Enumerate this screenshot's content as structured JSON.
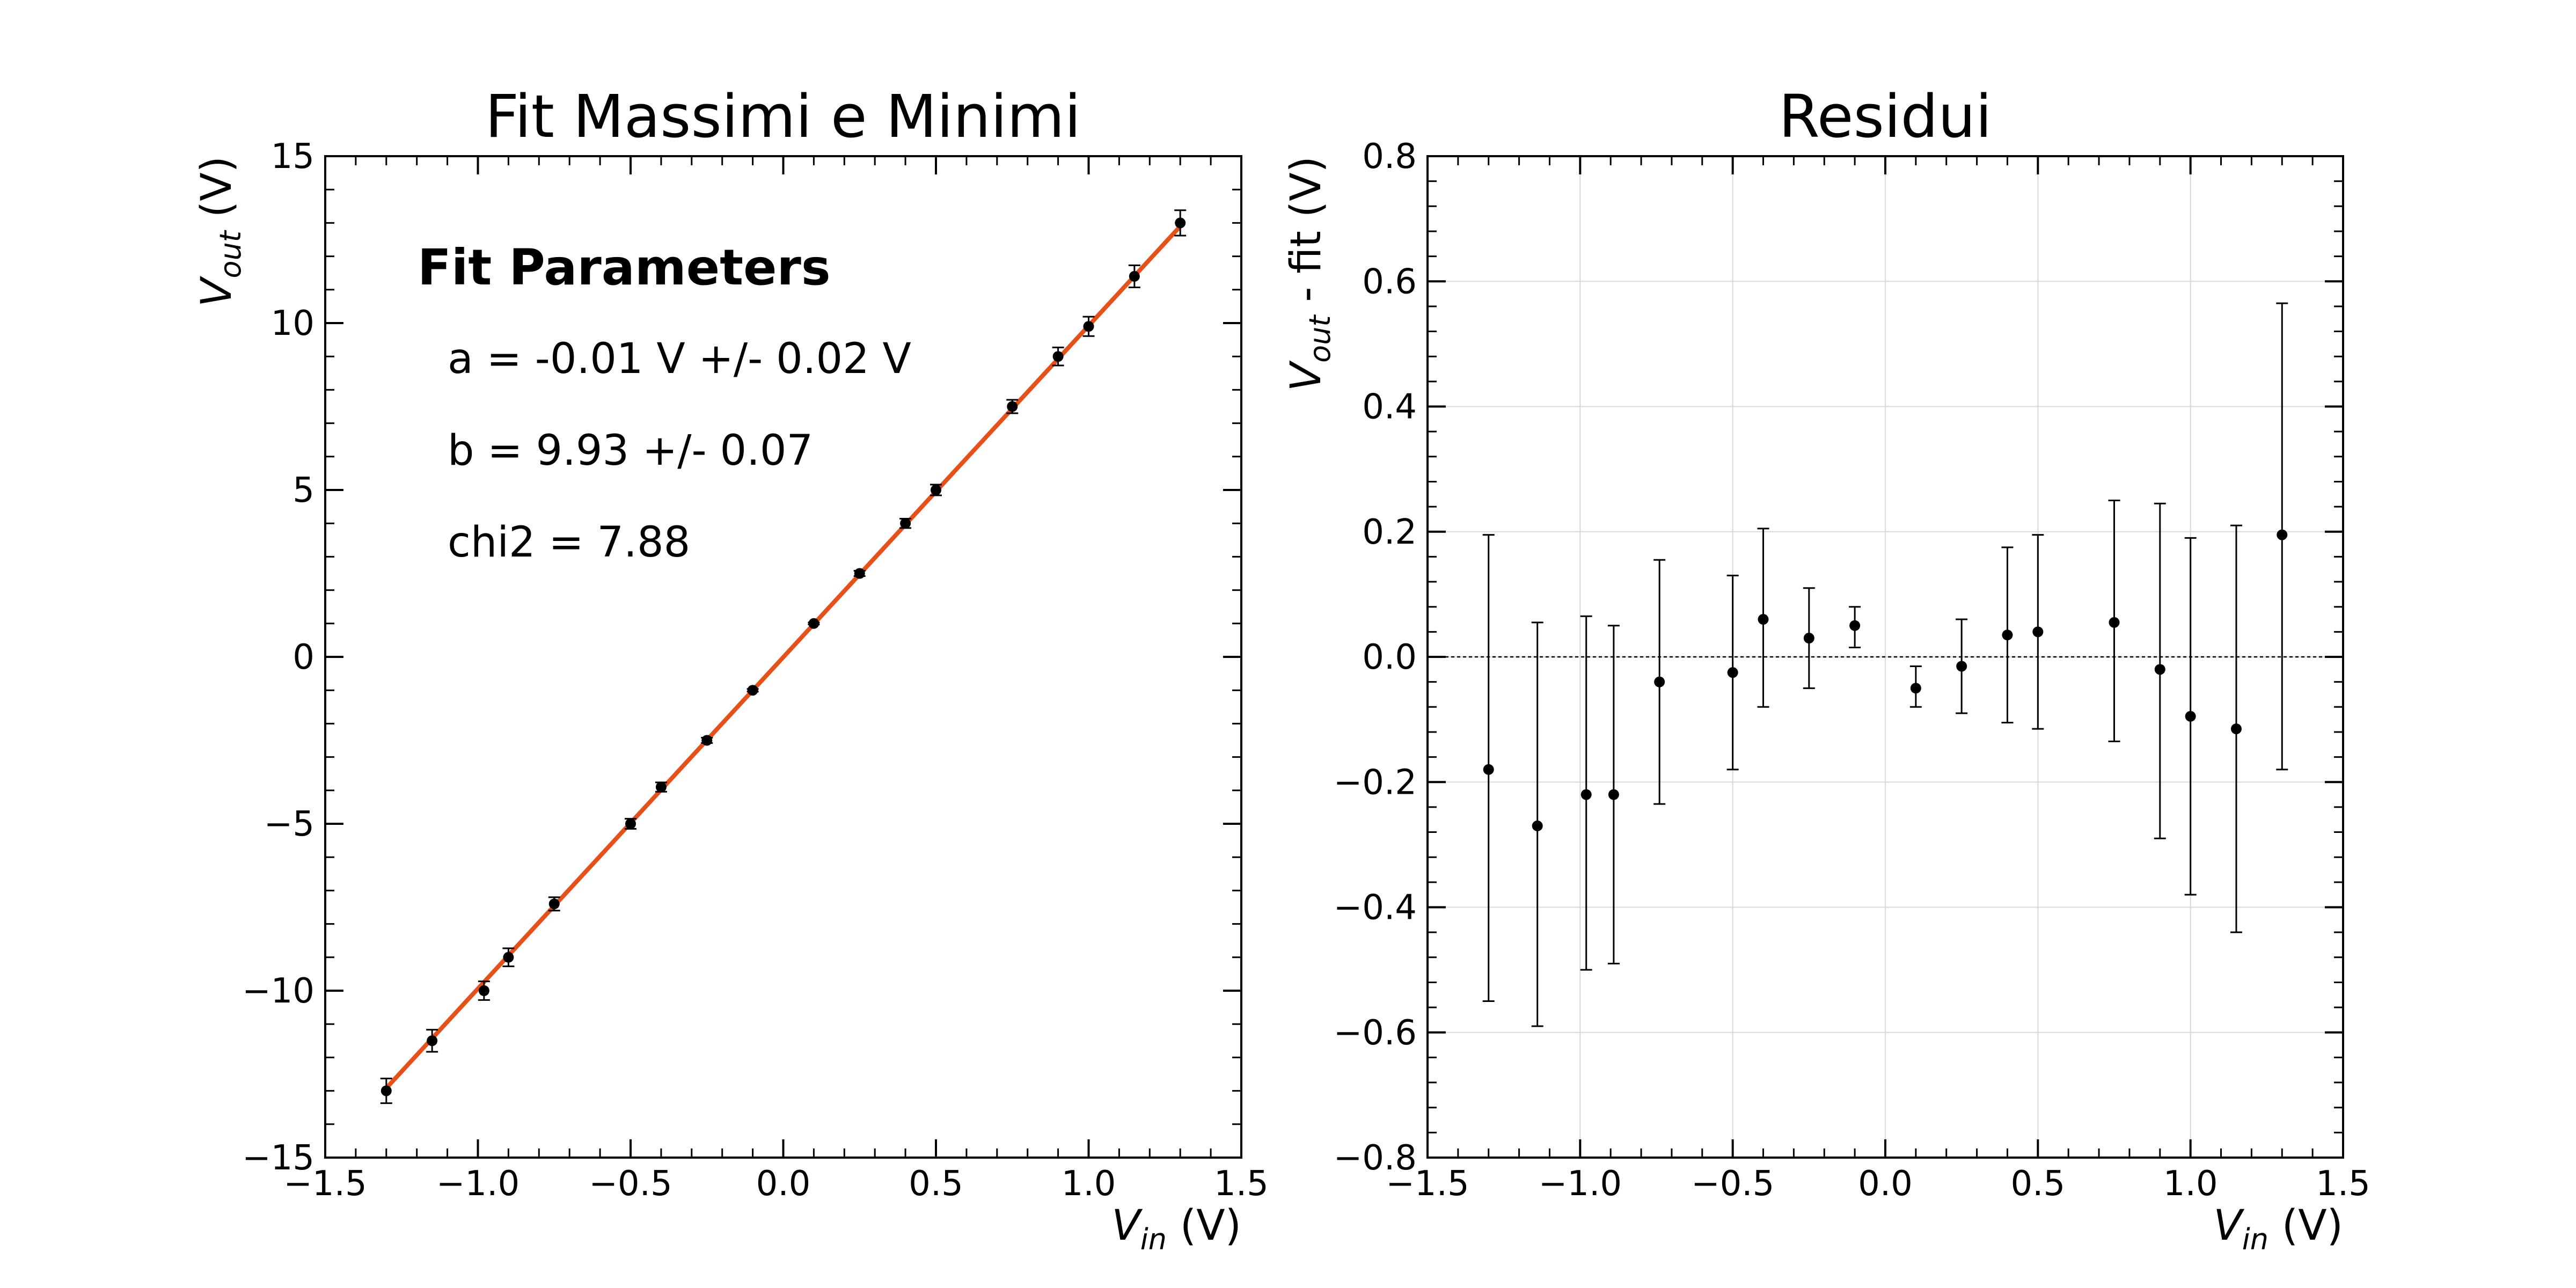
{
  "chart_data": [
    {
      "type": "scatter",
      "title": "Fit Massimi e Minimi",
      "xlabel": {
        "main": "V",
        "sub": "in",
        "unit": " (V)"
      },
      "ylabel": {
        "main": "V",
        "sub": "out",
        "unit": " (V)"
      },
      "xlim": [
        -1.5,
        1.5
      ],
      "ylim": [
        -15,
        15
      ],
      "xticks": [
        -1.5,
        -1.0,
        -0.5,
        0.0,
        0.5,
        1.0,
        1.5
      ],
      "xtick_labels": [
        "−1.5",
        "−1.0",
        "−0.5",
        "0.0",
        "0.5",
        "1.0",
        "1.5"
      ],
      "yticks": [
        -15,
        -10,
        -5,
        0,
        5,
        10,
        15
      ],
      "ytick_labels": [
        "−15",
        "−10",
        "−5",
        "0",
        "5",
        "10",
        "15"
      ],
      "grid": false,
      "fit_line": {
        "a": -0.01,
        "b": 9.93,
        "x_range": [
          -1.3,
          1.3
        ],
        "color": "#e8501a"
      },
      "annotation": {
        "heading": "Fit Parameters",
        "lines": [
          "a = -0.01 V +/- 0.02 V",
          "b = 9.93 +/- 0.07",
          "chi2 = 7.88"
        ]
      },
      "series": [
        {
          "x": [
            -1.3,
            -1.15,
            -0.98,
            -0.9,
            -0.75,
            -0.5,
            -0.4,
            -0.25,
            -0.1,
            0.1,
            0.25,
            0.4,
            0.5,
            0.75,
            0.9,
            1.0,
            1.15,
            1.3
          ],
          "y": [
            -13.0,
            -11.5,
            -10.0,
            -9.0,
            -7.4,
            -5.0,
            -3.9,
            -2.5,
            -1.0,
            1.0,
            2.5,
            4.0,
            5.0,
            7.5,
            9.0,
            9.9,
            11.4,
            13.0
          ],
          "yerr": [
            0.37,
            0.33,
            0.28,
            0.27,
            0.2,
            0.15,
            0.14,
            0.08,
            0.04,
            0.03,
            0.08,
            0.14,
            0.16,
            0.2,
            0.27,
            0.29,
            0.33,
            0.38
          ]
        }
      ]
    },
    {
      "type": "scatter",
      "title": "Residui",
      "xlabel": {
        "main": "V",
        "sub": "in",
        "unit": " (V)"
      },
      "ylabel": {
        "main": "V",
        "sub": "out",
        "unit": " - fit (V)"
      },
      "xlim": [
        -1.5,
        1.5
      ],
      "ylim": [
        -0.8,
        0.8
      ],
      "xticks": [
        -1.5,
        -1.0,
        -0.5,
        0.0,
        0.5,
        1.0,
        1.5
      ],
      "xtick_labels": [
        "−1.5",
        "−1.0",
        "−0.5",
        "0.0",
        "0.5",
        "1.0",
        "1.5"
      ],
      "yticks": [
        -0.8,
        -0.6,
        -0.4,
        -0.2,
        0.0,
        0.2,
        0.4,
        0.6,
        0.8
      ],
      "ytick_labels": [
        "−0.8",
        "−0.6",
        "−0.4",
        "−0.2",
        "0.0",
        "0.2",
        "0.4",
        "0.6",
        "0.8"
      ],
      "grid": true,
      "reference_line": 0,
      "series": [
        {
          "x": [
            -1.3,
            -1.14,
            -0.98,
            -0.89,
            -0.74,
            -0.5,
            -0.4,
            -0.25,
            -0.1,
            0.1,
            0.25,
            0.4,
            0.5,
            0.75,
            0.9,
            1.0,
            1.15,
            1.3
          ],
          "y": [
            -0.18,
            -0.27,
            -0.22,
            -0.22,
            -0.04,
            -0.025,
            0.06,
            0.03,
            0.05,
            -0.05,
            -0.015,
            0.035,
            0.04,
            0.055,
            -0.02,
            -0.095,
            -0.115,
            0.195
          ],
          "ylow": [
            -0.55,
            -0.59,
            -0.5,
            -0.49,
            -0.235,
            -0.18,
            -0.08,
            -0.05,
            0.015,
            -0.08,
            -0.09,
            -0.105,
            -0.115,
            -0.135,
            -0.29,
            -0.38,
            -0.44,
            -0.18
          ],
          "yhigh": [
            0.195,
            0.055,
            0.065,
            0.05,
            0.155,
            0.13,
            0.205,
            0.11,
            0.08,
            -0.015,
            0.06,
            0.175,
            0.195,
            0.25,
            0.245,
            0.19,
            0.21,
            0.565
          ]
        }
      ]
    }
  ]
}
